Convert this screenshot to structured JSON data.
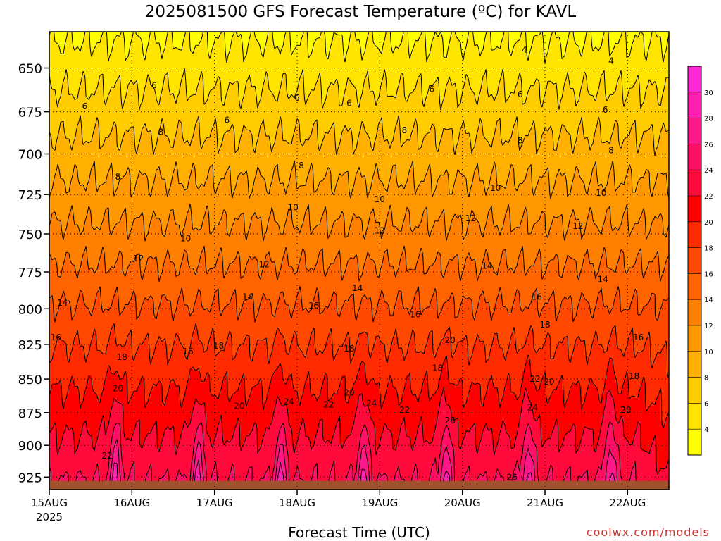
{
  "chart_data": {
    "type": "heatmap",
    "title": "2025081500 GFS Forecast Temperature (ºC) for KAVL",
    "xlabel": "Forecast Time (UTC)",
    "ylabel": "",
    "watermark": "coolwx.com/models",
    "x_ticks": [
      {
        "label": "15AUG",
        "sub": "2025",
        "t": 0
      },
      {
        "label": "16AUG",
        "sub": "",
        "t": 1
      },
      {
        "label": "17AUG",
        "sub": "",
        "t": 2
      },
      {
        "label": "18AUG",
        "sub": "",
        "t": 3
      },
      {
        "label": "19AUG",
        "sub": "",
        "t": 4
      },
      {
        "label": "20AUG",
        "sub": "",
        "t": 5
      },
      {
        "label": "21AUG",
        "sub": "",
        "t": 6
      },
      {
        "label": "22AUG",
        "sub": "",
        "t": 7
      }
    ],
    "xlim": [
      0,
      7.5
    ],
    "y_ticks": [
      650,
      675,
      700,
      725,
      750,
      775,
      800,
      825,
      850,
      875,
      900,
      925
    ],
    "ylim": [
      630,
      935
    ],
    "y_scale": "log-pressure",
    "ground_pressure": 928,
    "grid": true,
    "colorbar": {
      "levels": [
        4,
        6,
        8,
        10,
        12,
        14,
        16,
        18,
        20,
        22,
        24,
        26,
        28,
        30
      ],
      "colors": [
        "#ffff00",
        "#ffe400",
        "#ffcc00",
        "#ffb000",
        "#ff9800",
        "#ff8000",
        "#ff6400",
        "#ff4800",
        "#ff2a00",
        "#ff0000",
        "#ff0a3a",
        "#ff1066",
        "#ff188a",
        "#ff20b0",
        "#ff28d6"
      ]
    },
    "contour_labels": [
      {
        "v": "4",
        "t": 5.75,
        "p": 640
      },
      {
        "v": "4",
        "t": 6.8,
        "p": 646
      },
      {
        "v": "6",
        "t": 1.27,
        "p": 660
      },
      {
        "v": "6",
        "t": 0.43,
        "p": 672
      },
      {
        "v": "6",
        "t": 2.15,
        "p": 680
      },
      {
        "v": "6",
        "t": 3.0,
        "p": 667
      },
      {
        "v": "6",
        "t": 3.63,
        "p": 670
      },
      {
        "v": "6",
        "t": 4.63,
        "p": 662
      },
      {
        "v": "6",
        "t": 5.7,
        "p": 665
      },
      {
        "v": "6",
        "t": 6.73,
        "p": 674
      },
      {
        "v": "8",
        "t": 1.35,
        "p": 687
      },
      {
        "v": "8",
        "t": 0.83,
        "p": 714
      },
      {
        "v": "8",
        "t": 3.05,
        "p": 707
      },
      {
        "v": "8",
        "t": 4.3,
        "p": 686
      },
      {
        "v": "8",
        "t": 5.7,
        "p": 692
      },
      {
        "v": "8",
        "t": 6.8,
        "p": 698
      },
      {
        "v": "10",
        "t": 1.65,
        "p": 753
      },
      {
        "v": "10",
        "t": 2.95,
        "p": 733
      },
      {
        "v": "10",
        "t": 4.0,
        "p": 728
      },
      {
        "v": "10",
        "t": 5.4,
        "p": 721
      },
      {
        "v": "10",
        "t": 6.68,
        "p": 724
      },
      {
        "v": "12",
        "t": 1.08,
        "p": 766
      },
      {
        "v": "12",
        "t": 2.6,
        "p": 770
      },
      {
        "v": "12",
        "t": 4.0,
        "p": 748
      },
      {
        "v": "12",
        "t": 5.1,
        "p": 740
      },
      {
        "v": "12",
        "t": 6.4,
        "p": 745
      },
      {
        "v": "14",
        "t": 0.16,
        "p": 796
      },
      {
        "v": "14",
        "t": 2.4,
        "p": 792
      },
      {
        "v": "14",
        "t": 3.73,
        "p": 786
      },
      {
        "v": "14",
        "t": 5.3,
        "p": 771
      },
      {
        "v": "14",
        "t": 6.7,
        "p": 780
      },
      {
        "v": "16",
        "t": 0.08,
        "p": 820
      },
      {
        "v": "16",
        "t": 1.68,
        "p": 830
      },
      {
        "v": "16",
        "t": 3.2,
        "p": 798
      },
      {
        "v": "16",
        "t": 4.43,
        "p": 804
      },
      {
        "v": "16",
        "t": 5.9,
        "p": 792
      },
      {
        "v": "16",
        "t": 7.13,
        "p": 820
      },
      {
        "v": "18",
        "t": 0.88,
        "p": 834
      },
      {
        "v": "18",
        "t": 2.05,
        "p": 826
      },
      {
        "v": "18",
        "t": 3.63,
        "p": 828
      },
      {
        "v": "18",
        "t": 4.7,
        "p": 842
      },
      {
        "v": "18",
        "t": 6.0,
        "p": 811
      },
      {
        "v": "18",
        "t": 7.08,
        "p": 848
      },
      {
        "v": "20",
        "t": 0.83,
        "p": 857
      },
      {
        "v": "20",
        "t": 2.3,
        "p": 870
      },
      {
        "v": "20",
        "t": 3.63,
        "p": 860
      },
      {
        "v": "20",
        "t": 4.85,
        "p": 822
      },
      {
        "v": "20",
        "t": 6.05,
        "p": 852
      },
      {
        "v": "20",
        "t": 6.98,
        "p": 873
      },
      {
        "v": "22",
        "t": 0.7,
        "p": 908
      },
      {
        "v": "22",
        "t": 3.38,
        "p": 869
      },
      {
        "v": "22",
        "t": 4.3,
        "p": 873
      },
      {
        "v": "22",
        "t": 5.88,
        "p": 850
      },
      {
        "v": "24",
        "t": 2.9,
        "p": 867
      },
      {
        "v": "24",
        "t": 3.9,
        "p": 868
      },
      {
        "v": "24",
        "t": 5.85,
        "p": 871
      },
      {
        "v": "26",
        "t": 4.85,
        "p": 881
      },
      {
        "v": "26",
        "t": 5.6,
        "p": 925
      }
    ]
  }
}
